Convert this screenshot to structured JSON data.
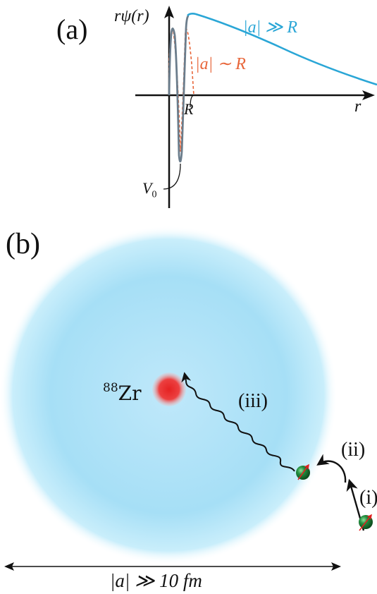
{
  "panel_a": {
    "label": "(a)",
    "y_axis_label": "rψ(r)",
    "x_axis_label": "r",
    "tick_R": "R",
    "tick_V0": "V",
    "tick_V0_sub": "0",
    "curve_large_label": "|a| ≫ R",
    "curve_small_label": "|a| ∼ R",
    "colors": {
      "large": "#2aa6d6",
      "small": "#e8663a",
      "well": "#6b7d8c"
    }
  },
  "panel_b": {
    "label": "(b)",
    "nucleus_mass": "88",
    "nucleus_symbol": "Zr",
    "step_iii": "(iii)",
    "step_ii": "(ii)",
    "step_i": "(i)",
    "scale_label": "|a| ≫ 10 fm",
    "colors": {
      "cloud": "#8fd3f0",
      "nucleus": "#e53030",
      "neutron": "#1f8a3a",
      "spin": "#e02020"
    }
  }
}
